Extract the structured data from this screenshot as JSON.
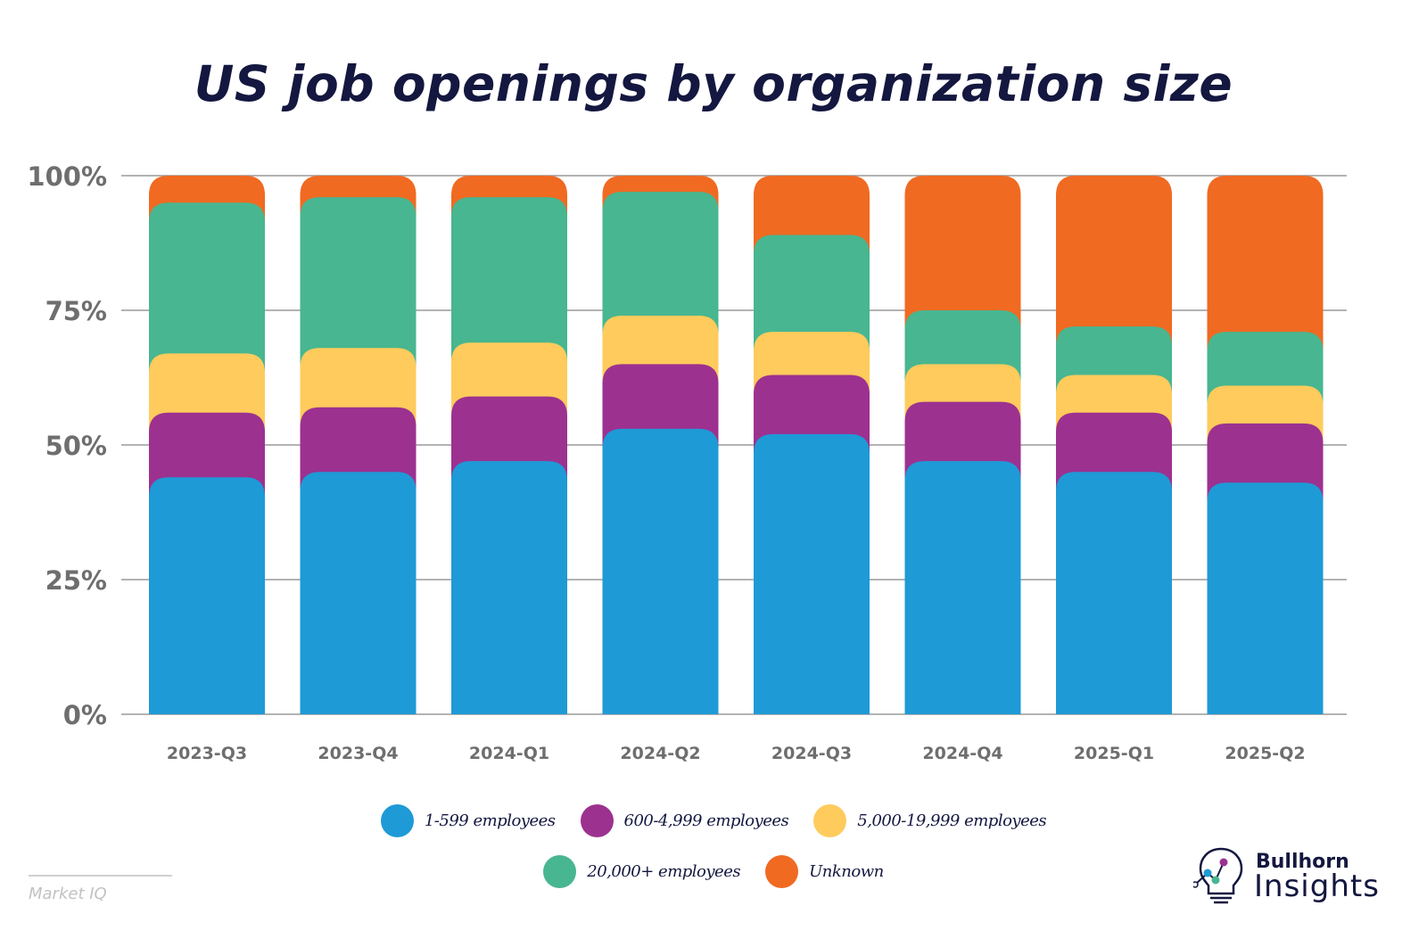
{
  "title": "US job openings by organization size",
  "chart_data": {
    "type": "bar",
    "stacked": true,
    "title": "US job openings by organization size",
    "xlabel": "",
    "ylabel": "",
    "ylim": [
      0,
      100
    ],
    "y_ticks": [
      "0%",
      "25%",
      "50%",
      "75%",
      "100%"
    ],
    "y_tick_values": [
      0,
      25,
      50,
      75,
      100
    ],
    "grid": true,
    "legend_position": "bottom",
    "categories": [
      "2023-Q3",
      "2023-Q4",
      "2024-Q1",
      "2024-Q2",
      "2024-Q3",
      "2024-Q4",
      "2025-Q1",
      "2025-Q2"
    ],
    "series": [
      {
        "name": "1-599 employees",
        "color": "#1E9AD6",
        "values": [
          44,
          45,
          47,
          53,
          52,
          47,
          45,
          43
        ]
      },
      {
        "name": "600-4,999 employees",
        "color": "#9C3190",
        "values": [
          12,
          12,
          12,
          12,
          11,
          11,
          11,
          11
        ]
      },
      {
        "name": "5,000-19,999 employees",
        "color": "#FECB5C",
        "values": [
          11,
          11,
          10,
          9,
          8,
          7,
          7,
          7
        ]
      },
      {
        "name": "20,000+ employees",
        "color": "#48B690",
        "values": [
          28,
          28,
          27,
          23,
          18,
          10,
          9,
          10
        ]
      },
      {
        "name": "Unknown",
        "color": "#F06A22",
        "values": [
          5,
          4,
          4,
          3,
          11,
          25,
          28,
          29
        ]
      }
    ]
  },
  "legend": {
    "row1": [
      {
        "label": "1-599 employees",
        "color": "#1E9AD6"
      },
      {
        "label": "600-4,999 employees",
        "color": "#9C3190"
      },
      {
        "label": "5,000-19,999 employees",
        "color": "#FECB5C"
      }
    ],
    "row2": [
      {
        "label": "20,000+ employees",
        "color": "#48B690"
      },
      {
        "label": "Unknown",
        "color": "#F06A22"
      }
    ]
  },
  "footer": {
    "source": "Market IQ",
    "brand_line1": "Bullhorn",
    "brand_line2": "Insights",
    "logo_icon": "lightbulb-chart-icon"
  }
}
